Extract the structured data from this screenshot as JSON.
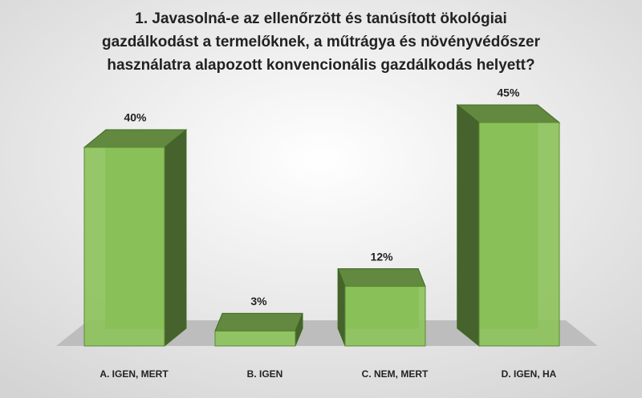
{
  "chart_data": {
    "type": "bar3d",
    "title": "1. Javasolná-e az ellenőrzött és tanúsított ökológiai gazdálkodást a termelőknek, a műtrágya és növényvédőszer használatra alapozott konvencionális gazdálkodás helyett?",
    "categories": [
      "A. IGEN, MERT",
      "B. IGEN",
      "C. NEM, MERT",
      "D. IGEN, HA"
    ],
    "values": [
      40,
      3,
      12,
      45
    ],
    "value_labels": [
      "40%",
      "3%",
      "12%",
      "45%"
    ],
    "color": "#8cc35a",
    "ylim": [
      0,
      50
    ]
  }
}
